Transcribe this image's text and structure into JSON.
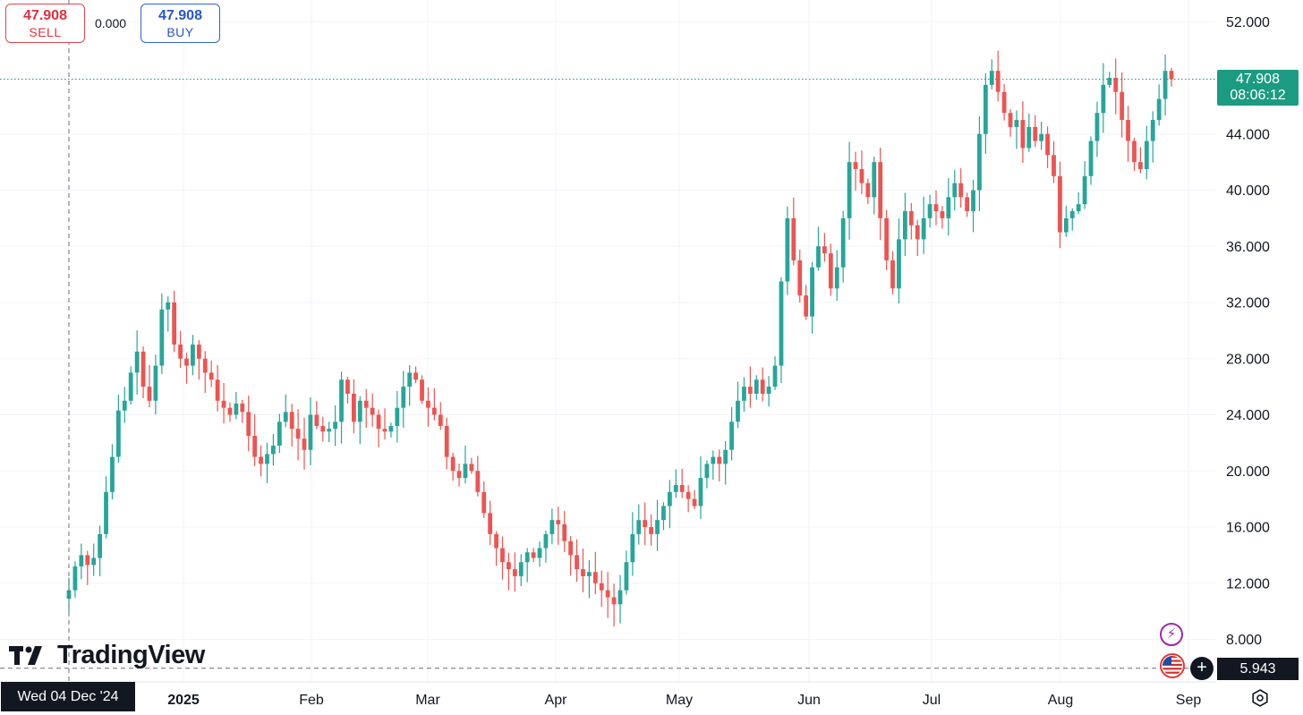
{
  "trade": {
    "sell_price": "47.908",
    "sell_label": "SELL",
    "spread": "0.000",
    "buy_price": "47.908",
    "buy_label": "BUY"
  },
  "brand": {
    "logo_text": "TradingView"
  },
  "crosshair": {
    "date_label": "Wed 04 Dec '24",
    "price_label": "5.943"
  },
  "last_price": {
    "value": "47.908",
    "countdown": "08:06:12"
  },
  "colors": {
    "up": "#26a69a",
    "down": "#ef5350",
    "last_price": "#1b9b81",
    "crosshair": "#131722"
  },
  "icons": [
    "lightning-icon",
    "us-flag-icon",
    "plus-icon",
    "settings-icon"
  ],
  "chart_data": {
    "type": "candlestick",
    "y_axis": {
      "range": [
        6.5,
        53.5
      ],
      "ticks": [
        52,
        48,
        44,
        40,
        36,
        32,
        28,
        24,
        20,
        16,
        12,
        8
      ],
      "tick_labels": [
        "52.000",
        "44.000",
        "40.000",
        "36.000",
        "32.000",
        "28.000",
        "24.000",
        "20.000",
        "16.000",
        "12.000",
        "8.000"
      ]
    },
    "x_axis": {
      "labels": [
        "2025",
        "Feb",
        "Mar",
        "Apr",
        "May",
        "Jun",
        "Jul",
        "Aug",
        "Sep"
      ]
    },
    "grid": true,
    "last_price_line": 47.908,
    "crosshair_price": 5.943,
    "close_series": [
      11.5,
      13.2,
      14.0,
      13.3,
      13.8,
      15.5,
      18.5,
      21.0,
      24.3,
      25.0,
      27.0,
      28.5,
      26.0,
      25.0,
      27.5,
      31.5,
      32.0,
      29.0,
      28.0,
      27.5,
      29.0,
      28.0,
      27.0,
      26.5,
      25.0,
      24.5,
      24.0,
      24.8,
      24.2,
      22.5,
      21.0,
      20.5,
      21.2,
      21.8,
      23.5,
      24.2,
      23.0,
      22.3,
      21.5,
      24.0,
      23.2,
      22.8,
      23.0,
      23.5,
      26.5,
      25.5,
      23.5,
      25.0,
      24.5,
      24.0,
      23.0,
      22.8,
      23.2,
      24.5,
      26.0,
      27.0,
      26.5,
      25.0,
      24.5,
      24.0,
      23.2,
      21.0,
      20.0,
      19.5,
      20.5,
      20.0,
      18.5,
      17.0,
      15.5,
      14.5,
      13.5,
      13.0,
      12.5,
      13.5,
      14.2,
      13.8,
      14.5,
      15.5,
      16.5,
      16.2,
      15.0,
      14.0,
      13.0,
      12.5,
      12.8,
      12.0,
      11.5,
      11.0,
      10.5,
      11.5,
      13.5,
      15.5,
      16.5,
      16.0,
      15.5,
      16.5,
      17.5,
      18.5,
      19.0,
      18.5,
      18.0,
      17.5,
      19.5,
      20.5,
      21.0,
      20.5,
      21.5,
      23.5,
      25.0,
      26.0,
      25.5,
      26.5,
      25.5,
      26.0,
      27.5,
      33.5,
      38.0,
      35.0,
      32.5,
      31.0,
      34.5,
      36.0,
      35.5,
      33.0,
      34.5,
      38.0,
      42.0,
      41.5,
      40.5,
      39.5,
      42.0,
      38.0,
      35.0,
      33.0,
      36.5,
      38.5,
      37.5,
      36.5,
      38.0,
      39.0,
      38.5,
      38.0,
      39.5,
      40.5,
      39.5,
      38.5,
      40.0,
      44.0,
      47.5,
      48.5,
      47.0,
      45.5,
      44.5,
      45.0,
      43.0,
      44.5,
      43.5,
      44.0,
      42.5,
      41.0,
      37.0,
      38.0,
      38.5,
      39.0,
      41.0,
      43.5,
      45.5,
      47.5,
      48.0,
      47.0,
      45.0,
      43.5,
      42.0,
      41.5,
      43.5,
      45.0,
      46.5,
      48.5,
      47.908
    ],
    "axis_range_left_date": "Wed 04 Dec '24",
    "axis_range_right_date": "Sep"
  }
}
